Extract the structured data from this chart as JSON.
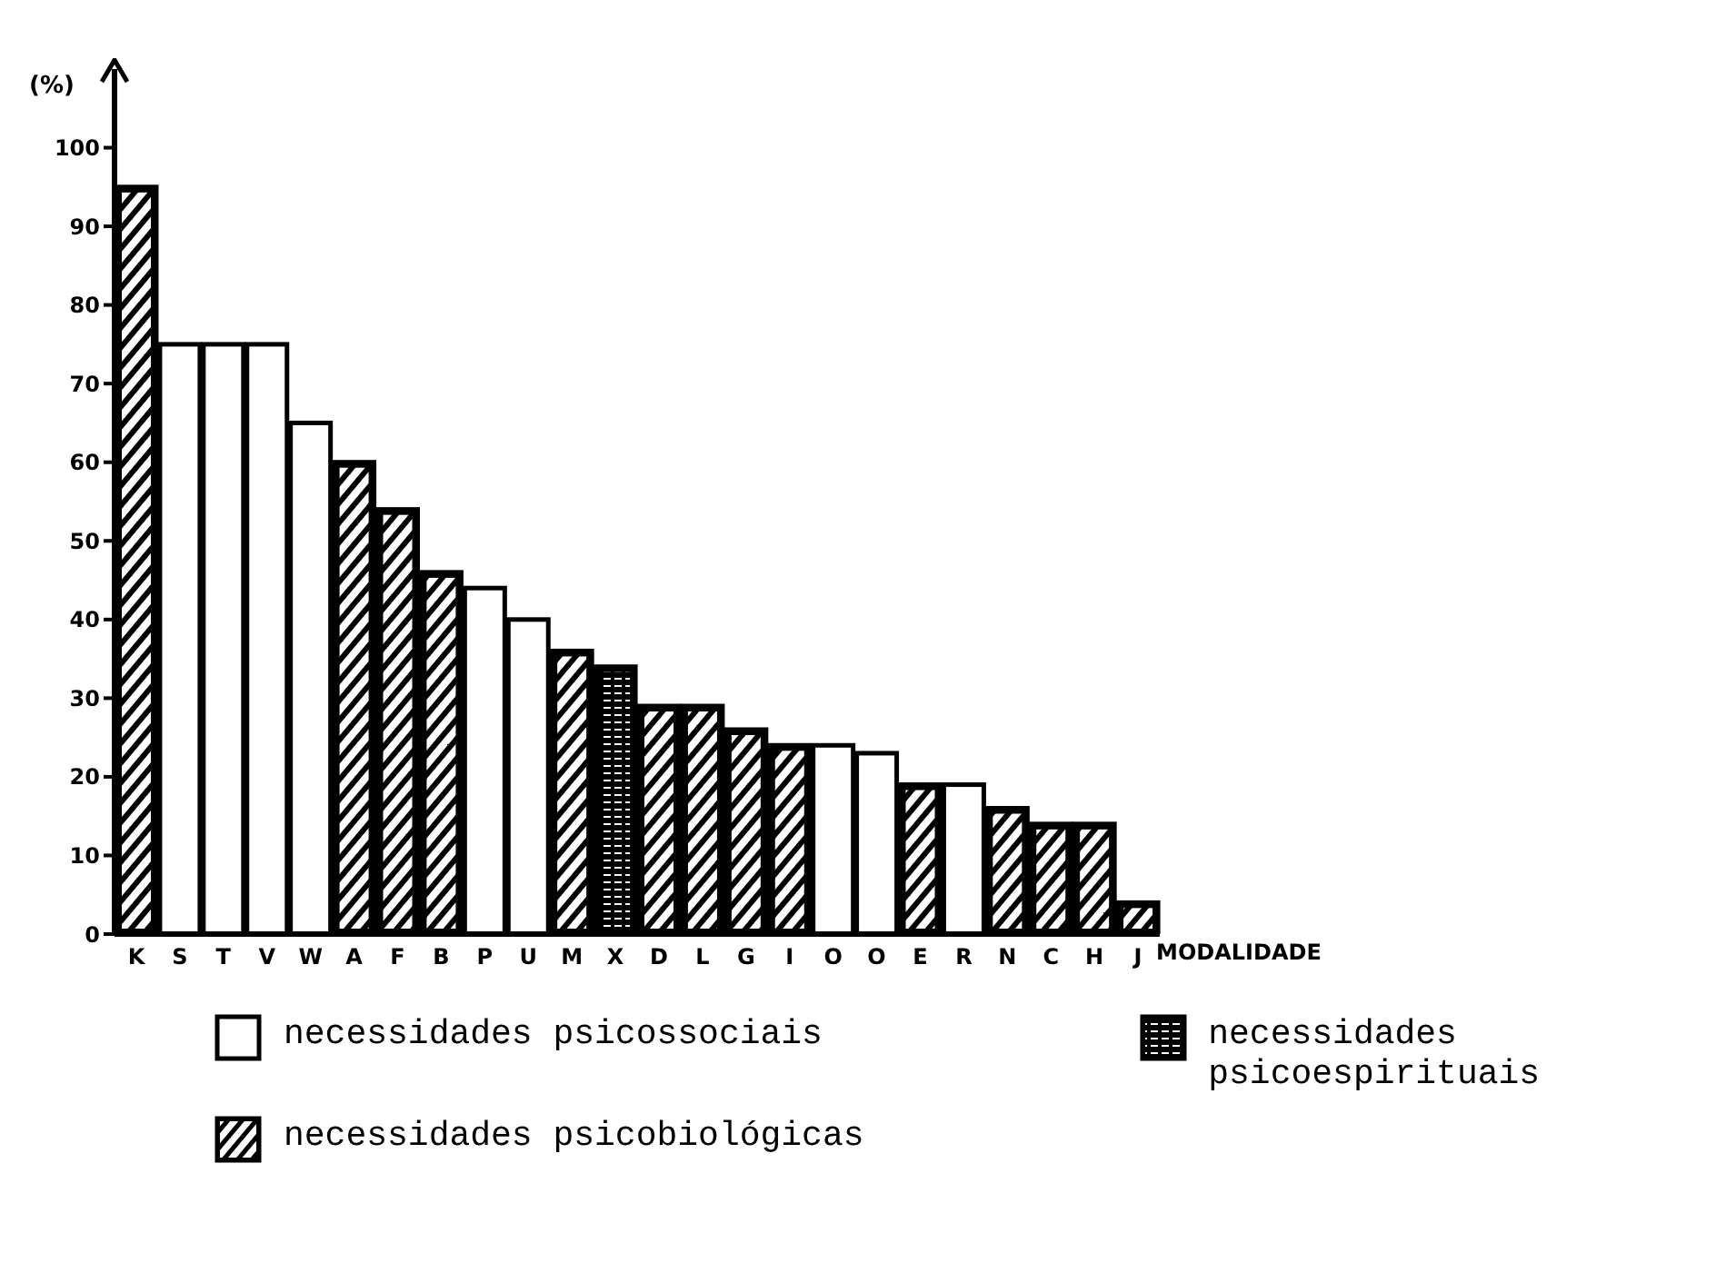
{
  "chart_data": {
    "type": "bar",
    "stacked": true,
    "ylabel": "(%)",
    "xlabel": "MODALIDADE",
    "categories": [
      "K",
      "S",
      "T",
      "V",
      "W",
      "A",
      "F",
      "B",
      "P",
      "U",
      "M",
      "X",
      "D",
      "L",
      "G",
      "I",
      "O",
      "O",
      "E",
      "R",
      "N",
      "C",
      "H",
      "J"
    ],
    "series": [
      {
        "name": "necessidades psicossociais",
        "color": "#ffffff",
        "values": [
          null,
          75,
          75,
          75,
          65,
          null,
          null,
          null,
          44,
          40,
          null,
          null,
          null,
          null,
          null,
          null,
          24,
          23,
          null,
          19,
          null,
          null,
          null,
          null
        ]
      },
      {
        "name": "necessidades psicobiológicas",
        "color": "#000000",
        "values": [
          95,
          null,
          null,
          null,
          null,
          60,
          54,
          46,
          null,
          null,
          36,
          null,
          29,
          29,
          26,
          24,
          null,
          null,
          19,
          null,
          16,
          14,
          14,
          4
        ]
      },
      {
        "name": "necessidades psicoespirituais",
        "color": "#000000",
        "values": [
          null,
          null,
          null,
          null,
          null,
          null,
          null,
          null,
          null,
          null,
          null,
          34,
          null,
          null,
          null,
          null,
          null,
          null,
          null,
          null,
          null,
          null,
          null,
          null
        ]
      }
    ],
    "ylim": [
      0,
      110
    ],
    "yticks": [
      0,
      10,
      20,
      30,
      40,
      50,
      60,
      70,
      80,
      90,
      100
    ],
    "grid": false,
    "legend": "bottom"
  }
}
